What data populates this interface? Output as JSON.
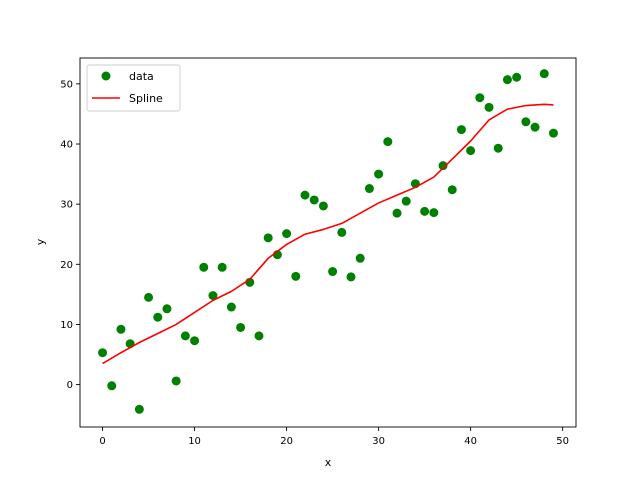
{
  "chart_data": {
    "type": "scatter",
    "title": "",
    "xlabel": "x",
    "ylabel": "y",
    "xlim": [
      -2.45,
      51.45
    ],
    "ylim": [
      -7.05,
      54.3
    ],
    "xticks": [
      0,
      10,
      20,
      30,
      40,
      50
    ],
    "yticks": [
      0,
      10,
      20,
      30,
      40,
      50
    ],
    "grid": false,
    "legend_position": "top-left",
    "series": [
      {
        "name": "data",
        "kind": "scatter",
        "color": "#008000",
        "x": [
          0,
          1,
          2,
          3,
          4,
          5,
          6,
          7,
          8,
          9,
          10,
          11,
          12,
          13,
          14,
          15,
          16,
          17,
          18,
          19,
          20,
          21,
          22,
          23,
          24,
          25,
          26,
          27,
          28,
          29,
          30,
          31,
          32,
          33,
          34,
          35,
          36,
          37,
          38,
          39,
          40,
          41,
          42,
          43,
          44,
          45,
          46,
          47,
          48,
          49
        ],
        "y": [
          5.3,
          -0.2,
          9.2,
          6.8,
          -4.1,
          14.5,
          11.2,
          12.6,
          0.6,
          8.1,
          7.3,
          19.5,
          14.8,
          19.5,
          12.9,
          9.5,
          17.0,
          8.1,
          24.4,
          21.6,
          25.1,
          18.0,
          31.5,
          30.7,
          29.7,
          18.8,
          25.3,
          17.9,
          21.0,
          32.6,
          35.0,
          40.4,
          28.5,
          30.5,
          33.4,
          28.8,
          28.6,
          36.4,
          32.4,
          42.4,
          38.9,
          47.7,
          46.1,
          39.3,
          50.7,
          51.1,
          43.7,
          42.8,
          51.7,
          41.8
        ]
      },
      {
        "name": "Spline",
        "kind": "line",
        "color": "#ff0000",
        "x": [
          0,
          2,
          4,
          6,
          8,
          10,
          12,
          14,
          16,
          18,
          20,
          22,
          24,
          26,
          28,
          30,
          32,
          34,
          36,
          38,
          40,
          42,
          44,
          46,
          48,
          49
        ],
        "y": [
          3.5,
          5.3,
          7.0,
          8.5,
          10.0,
          12.0,
          14.0,
          15.5,
          17.5,
          21.0,
          23.3,
          25.0,
          25.8,
          26.8,
          28.5,
          30.2,
          31.5,
          32.8,
          34.5,
          37.5,
          40.5,
          44.0,
          45.8,
          46.4,
          46.6,
          46.5
        ]
      }
    ]
  }
}
